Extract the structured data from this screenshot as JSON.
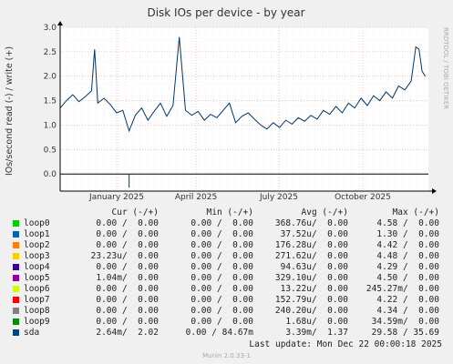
{
  "chart_data": {
    "type": "line",
    "title": "Disk IOs per device - by year",
    "ylabel": "IOs/second read (-) / write (+)",
    "side_label": "RRDTOOL / TOBI OETIKER",
    "ylim": [
      -0.35,
      3.0
    ],
    "yticks": [
      "3.0",
      "2.5",
      "2.0",
      "1.5",
      "1.0",
      "0.5",
      "0.0"
    ],
    "xticks": [
      "January 2025",
      "April 2025",
      "July 2025",
      "October 2025"
    ],
    "grid": true,
    "series_color": "#00386b",
    "sda_write_points": [
      [
        0,
        1.35
      ],
      [
        8,
        1.5
      ],
      [
        16,
        1.62
      ],
      [
        24,
        1.48
      ],
      [
        32,
        1.58
      ],
      [
        40,
        1.7
      ],
      [
        44,
        2.55
      ],
      [
        48,
        1.45
      ],
      [
        56,
        1.55
      ],
      [
        64,
        1.42
      ],
      [
        72,
        1.25
      ],
      [
        80,
        1.3
      ],
      [
        88,
        0.88
      ],
      [
        96,
        1.2
      ],
      [
        104,
        1.35
      ],
      [
        112,
        1.1
      ],
      [
        120,
        1.28
      ],
      [
        128,
        1.45
      ],
      [
        136,
        1.18
      ],
      [
        144,
        1.4
      ],
      [
        152,
        2.8
      ],
      [
        160,
        1.3
      ],
      [
        168,
        1.2
      ],
      [
        176,
        1.28
      ],
      [
        184,
        1.1
      ],
      [
        192,
        1.22
      ],
      [
        200,
        1.15
      ],
      [
        208,
        1.3
      ],
      [
        216,
        1.45
      ],
      [
        224,
        1.05
      ],
      [
        232,
        1.18
      ],
      [
        240,
        1.25
      ],
      [
        248,
        1.12
      ],
      [
        256,
        1.0
      ],
      [
        264,
        0.92
      ],
      [
        272,
        1.05
      ],
      [
        280,
        0.95
      ],
      [
        288,
        1.1
      ],
      [
        296,
        1.02
      ],
      [
        304,
        1.15
      ],
      [
        312,
        1.08
      ],
      [
        320,
        1.2
      ],
      [
        328,
        1.12
      ],
      [
        336,
        1.3
      ],
      [
        344,
        1.22
      ],
      [
        352,
        1.38
      ],
      [
        360,
        1.25
      ],
      [
        368,
        1.45
      ],
      [
        376,
        1.35
      ],
      [
        384,
        1.55
      ],
      [
        392,
        1.4
      ],
      [
        400,
        1.6
      ],
      [
        408,
        1.5
      ],
      [
        416,
        1.68
      ],
      [
        424,
        1.55
      ],
      [
        432,
        1.8
      ],
      [
        440,
        1.72
      ],
      [
        448,
        1.9
      ],
      [
        454,
        2.6
      ],
      [
        458,
        2.55
      ],
      [
        462,
        2.1
      ],
      [
        466,
        2.0
      ]
    ],
    "sda_read_points": [
      [
        88,
        -0.28
      ]
    ]
  },
  "legend": {
    "headers": [
      "Cur (-/+)",
      "Min (-/+)",
      "Avg (-/+)",
      "Max (-/+)"
    ],
    "rows": [
      {
        "name": "loop0",
        "color": "#00cc00",
        "cur": "0.00 /  0.00",
        "min": "0.00 /  0.00",
        "avg": "368.76u/  0.00",
        "max": "4.58 /  0.00"
      },
      {
        "name": "loop1",
        "color": "#0066b3",
        "cur": "0.00 /  0.00",
        "min": "0.00 /  0.00",
        "avg": "37.52u/  0.00",
        "max": "1.30 /  0.00"
      },
      {
        "name": "loop2",
        "color": "#ff8000",
        "cur": "0.00 /  0.00",
        "min": "0.00 /  0.00",
        "avg": "176.28u/  0.00",
        "max": "4.42 /  0.00"
      },
      {
        "name": "loop3",
        "color": "#ffcc00",
        "cur": "23.23u/  0.00",
        "min": "0.00 /  0.00",
        "avg": "271.62u/  0.00",
        "max": "4.48 /  0.00"
      },
      {
        "name": "loop4",
        "color": "#330099",
        "cur": "0.00 /  0.00",
        "min": "0.00 /  0.00",
        "avg": "94.63u/  0.00",
        "max": "4.29 /  0.00"
      },
      {
        "name": "loop5",
        "color": "#990099",
        "cur": "1.04m/  0.00",
        "min": "0.00 /  0.00",
        "avg": "329.10u/  0.00",
        "max": "4.50 /  0.00"
      },
      {
        "name": "loop6",
        "color": "#ccff00",
        "cur": "0.00 /  0.00",
        "min": "0.00 /  0.00",
        "avg": "13.22u/  0.00",
        "max": "245.27m/  0.00"
      },
      {
        "name": "loop7",
        "color": "#ff0000",
        "cur": "0.00 /  0.00",
        "min": "0.00 /  0.00",
        "avg": "152.79u/  0.00",
        "max": "4.22 /  0.00"
      },
      {
        "name": "loop8",
        "color": "#808080",
        "cur": "0.00 /  0.00",
        "min": "0.00 /  0.00",
        "avg": "240.20u/  0.00",
        "max": "4.34 /  0.00"
      },
      {
        "name": "loop9",
        "color": "#008f00",
        "cur": "0.00 /  0.00",
        "min": "0.00 /  0.00",
        "avg": "1.68u/  0.00",
        "max": "34.59m/  0.00"
      },
      {
        "name": "sda",
        "color": "#00487d",
        "cur": "2.64m/  2.02",
        "min": "0.00 / 84.67m",
        "avg": "3.39m/  1.37",
        "max": "29.58 / 35.69"
      }
    ]
  },
  "footer": {
    "last_update": "Last update:  Mon Dec 22 00:00:18 2025",
    "version": "Munin 2.0.33-1"
  }
}
